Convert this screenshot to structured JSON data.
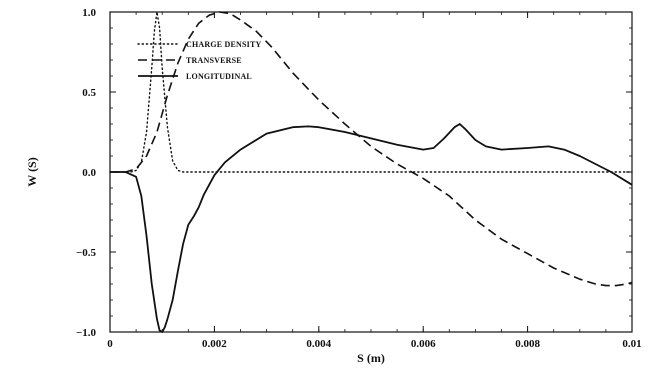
{
  "chart_data": {
    "type": "line",
    "xlabel": "S (m)",
    "ylabel": "W (S)",
    "xlim": [
      0,
      0.01
    ],
    "ylim": [
      -1.0,
      1.0
    ],
    "x_ticks": [
      "0",
      "0.002",
      "0.004",
      "0.006",
      "0.008",
      "0.01"
    ],
    "y_ticks": [
      "-1.0",
      "-0.5",
      "0.0",
      "0.5",
      "1.0"
    ],
    "legend_position": "top-left",
    "grid": false,
    "series": [
      {
        "name": "CHARGE DENSITY",
        "style": "dotted",
        "x": [
          0,
          0.0004,
          0.0005,
          0.0006,
          0.0007,
          0.0008,
          0.00085,
          0.0009,
          0.00095,
          0.001,
          0.0011,
          0.0012,
          0.0013,
          0.0014,
          0.002,
          0.004,
          0.006,
          0.008,
          0.01
        ],
        "y": [
          0,
          0,
          0.01,
          0.06,
          0.25,
          0.65,
          0.88,
          1.0,
          0.9,
          0.65,
          0.28,
          0.07,
          0.01,
          0,
          0,
          0,
          0,
          0,
          0
        ]
      },
      {
        "name": "TRANSVERSE",
        "style": "dashed",
        "x": [
          0,
          0.0003,
          0.0005,
          0.0007,
          0.0009,
          0.0011,
          0.0013,
          0.0015,
          0.0017,
          0.0019,
          0.0021,
          0.0023,
          0.0025,
          0.0028,
          0.0031,
          0.0035,
          0.004,
          0.0045,
          0.005,
          0.0055,
          0.006,
          0.0065,
          0.007,
          0.0075,
          0.008,
          0.0085,
          0.009,
          0.0093,
          0.0095,
          0.0097,
          0.0099,
          0.01
        ],
        "y": [
          0,
          0,
          0.02,
          0.1,
          0.25,
          0.48,
          0.68,
          0.83,
          0.93,
          0.98,
          1.0,
          0.99,
          0.95,
          0.88,
          0.78,
          0.62,
          0.45,
          0.3,
          0.16,
          0.05,
          -0.04,
          -0.15,
          -0.3,
          -0.42,
          -0.51,
          -0.6,
          -0.67,
          -0.7,
          -0.71,
          -0.71,
          -0.7,
          -0.69
        ]
      },
      {
        "name": "LONGITUDINAL",
        "style": "solid",
        "x": [
          0,
          0.0003,
          0.0005,
          0.0006,
          0.0007,
          0.0008,
          0.0009,
          0.00095,
          0.001,
          0.00105,
          0.0011,
          0.0012,
          0.0013,
          0.0014,
          0.0015,
          0.0016,
          0.0017,
          0.0018,
          0.002,
          0.0022,
          0.0025,
          0.003,
          0.0035,
          0.0038,
          0.004,
          0.0045,
          0.005,
          0.0055,
          0.006,
          0.0062,
          0.0064,
          0.0066,
          0.0067,
          0.0068,
          0.007,
          0.0072,
          0.0075,
          0.008,
          0.0084,
          0.0087,
          0.009,
          0.0093,
          0.0096,
          0.01
        ],
        "y": [
          0,
          0,
          -0.03,
          -0.15,
          -0.4,
          -0.7,
          -0.92,
          -0.99,
          -1.0,
          -0.97,
          -0.92,
          -0.8,
          -0.62,
          -0.45,
          -0.33,
          -0.28,
          -0.22,
          -0.14,
          -0.02,
          0.06,
          0.14,
          0.24,
          0.28,
          0.285,
          0.28,
          0.25,
          0.21,
          0.17,
          0.14,
          0.15,
          0.21,
          0.28,
          0.3,
          0.27,
          0.2,
          0.16,
          0.14,
          0.15,
          0.16,
          0.14,
          0.1,
          0.05,
          0.0,
          -0.08
        ]
      }
    ]
  }
}
